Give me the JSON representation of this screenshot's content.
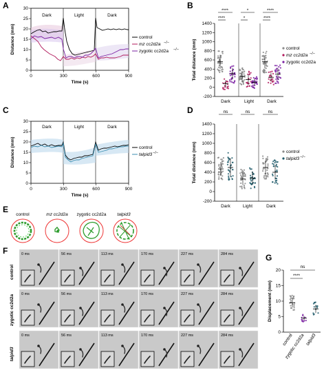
{
  "panels": {
    "A": {
      "letter": "A",
      "phases": [
        "Dark",
        "Light",
        "Dark"
      ],
      "ylabel": "Distance (mm)",
      "xlabel": "Time (s)",
      "xticks": [
        "0",
        "300",
        "600",
        "900"
      ],
      "yticks": [
        "0",
        "5",
        "10",
        "15",
        "20",
        "25",
        "30"
      ],
      "legend": [
        "control",
        "mz cc2d2a",
        "zygotic cc2d2a"
      ]
    },
    "B": {
      "letter": "B",
      "ylabel": "Total distance (mm)",
      "yticks": [
        "-200",
        "0",
        "200",
        "400",
        "600",
        "800",
        "1000",
        "1200",
        "1400"
      ],
      "xlabels": [
        "Dark",
        "Light",
        "Dark"
      ],
      "sig": [
        "****",
        "*",
        "****",
        "****",
        "*",
        "****"
      ],
      "legend": [
        "control",
        "mz cc2d2a",
        "zygotic cc2d2a"
      ]
    },
    "C": {
      "letter": "C",
      "phases": [
        "Dark",
        "Light",
        "Dark"
      ],
      "ylabel": "Distance (mm)",
      "xlabel": "Time (s)",
      "xticks": [
        "0",
        "300",
        "600",
        "900"
      ],
      "yticks": [
        "0",
        "5",
        "10",
        "15",
        "20",
        "25",
        "30"
      ],
      "legend": [
        "control",
        "talpid3"
      ]
    },
    "D": {
      "letter": "D",
      "ylabel": "Total distance (mm)",
      "yticks": [
        "-200",
        "0",
        "200",
        "400",
        "600",
        "800",
        "1000",
        "1200",
        "1400"
      ],
      "xlabels": [
        "Dark",
        "Light",
        "Dark"
      ],
      "sig": [
        "ns",
        "ns",
        "ns"
      ],
      "legend": [
        "control",
        "talpid3"
      ]
    },
    "E": {
      "letter": "E",
      "labels": [
        "control",
        "mz cc2d2a",
        "zygotic cc2d2a",
        "talpid3"
      ]
    },
    "F": {
      "letter": "F",
      "times": [
        "0 ms",
        "56 ms",
        "113 ms",
        "170 ms",
        "227 ms",
        "284 ms"
      ],
      "rows": [
        "control",
        "zygotic cc2d2a",
        "talpid3"
      ]
    },
    "G": {
      "letter": "G",
      "ylabel": "Displacement (mm)",
      "yticks": [
        "0",
        "5",
        "10",
        "15",
        "20"
      ],
      "xlabels": [
        "control",
        "zygotic cc2d2a",
        "talpid3"
      ],
      "sig": [
        "****",
        "ns"
      ]
    }
  },
  "colors": {
    "control": "#000000",
    "mz": "#b0175a",
    "zygotic": "#7a1fa2",
    "talpid": "#1f5a6a",
    "control_dot": "#8a8a8a"
  }
}
